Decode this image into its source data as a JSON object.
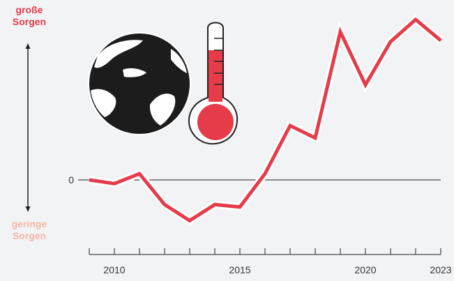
{
  "colors": {
    "line": "#e63b48",
    "line_halo": "#ffffff",
    "top_label": "#e63b48",
    "bottom_label": "#f7b7a5",
    "axis": "#222222",
    "background": "#f2f3f5"
  },
  "labels": {
    "top_line1": "große",
    "top_line2": "Sorgen",
    "bottom_line1": "geringe",
    "bottom_line2": "Sorgen"
  },
  "icons": [
    "globe-icon",
    "thermometer-icon"
  ],
  "chart_data": {
    "type": "line",
    "title": "",
    "xlabel": "",
    "ylabel": "",
    "x": [
      2009,
      2010,
      2011,
      2012,
      2013,
      2014,
      2015,
      2016,
      2017,
      2018,
      2019,
      2020,
      2021,
      2022,
      2023
    ],
    "xlim": [
      2009,
      2023
    ],
    "xticks": [
      2010,
      2015,
      2020,
      2023
    ],
    "ylim": [
      -3.3,
      12
    ],
    "yticks": [
      0
    ],
    "yticklabels": [
      "0"
    ],
    "series": [
      {
        "values": [
          0,
          -0.3,
          0.5,
          -2.0,
          -3.3,
          -2.0,
          -2.2,
          0.5,
          4.4,
          3.4,
          12.0,
          7.7,
          11.2,
          13.0,
          11.3
        ]
      }
    ],
    "grid": false,
    "legend": "none"
  }
}
